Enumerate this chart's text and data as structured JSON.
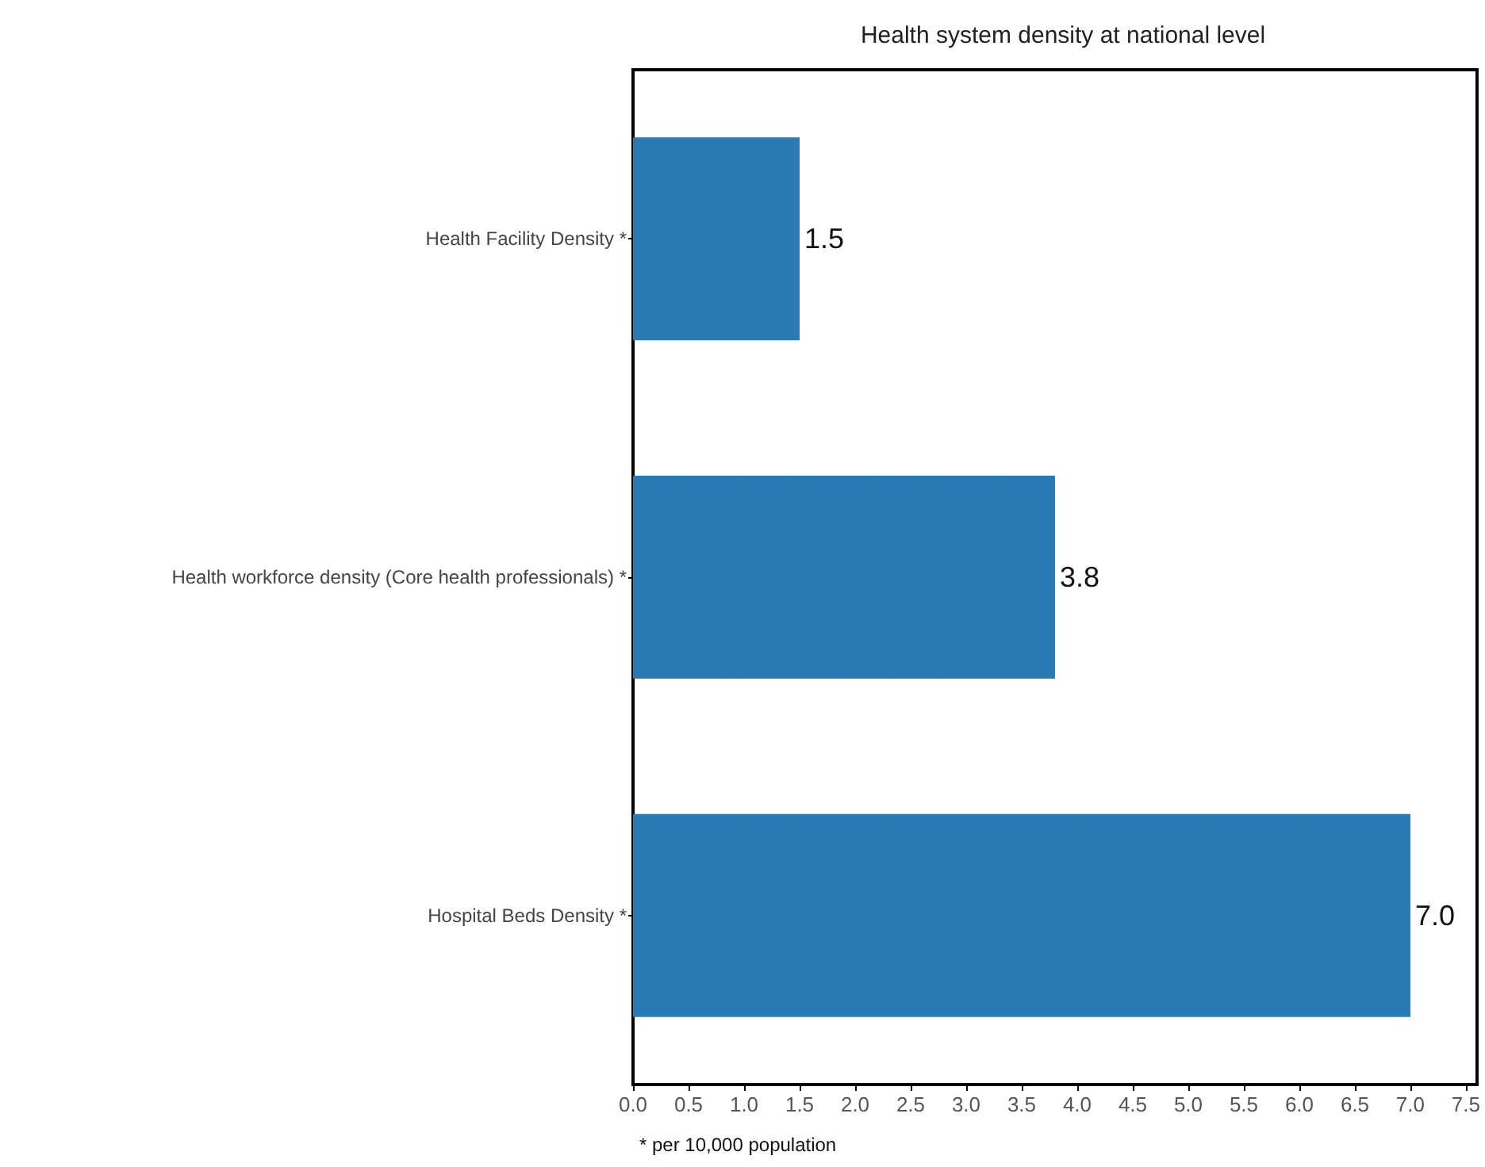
{
  "chart_data": {
    "type": "bar",
    "orientation": "horizontal",
    "title": "Health system density at national level",
    "categories": [
      "Health Facility Density *",
      "Health workforce density (Core health professionals) *",
      "Hospital Beds Density *"
    ],
    "values": [
      1.5,
      3.8,
      7.0
    ],
    "color": "#2a7ab3",
    "value_labels": [
      "1.5",
      "3.8",
      "7.0"
    ],
    "xlim": [
      0,
      7.6
    ],
    "xticks": [
      {
        "value": 0,
        "label": "0.0"
      },
      0.5,
      {
        "value": 1,
        "label": "1.0"
      },
      1.5,
      {
        "value": 2,
        "label": "2.0"
      },
      2.5,
      {
        "value": 3,
        "label": "3.0"
      },
      3.5,
      {
        "value": 4,
        "label": "4.0"
      },
      4.5,
      {
        "value": 5,
        "label": "5.0"
      },
      5.5,
      {
        "value": 6,
        "label": "6.0"
      },
      6.5,
      {
        "value": 7,
        "label": "7.0"
      },
      7.5
    ],
    "grid": false,
    "annotations": [
      "* per 10,000 population"
    ]
  }
}
